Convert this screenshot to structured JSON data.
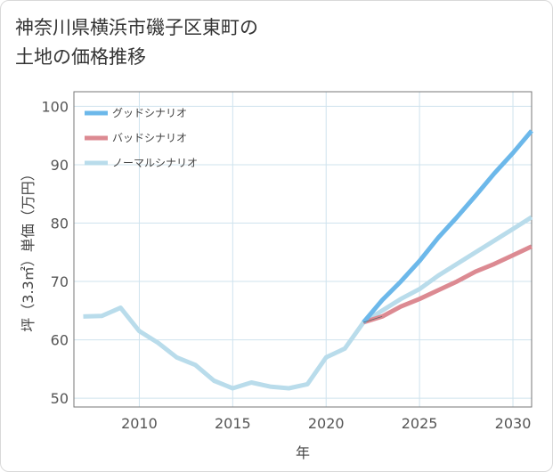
{
  "chart_data": {
    "type": "line",
    "title_lines": [
      "神奈川県横浜市磯子区東町の",
      "土地の価格推移"
    ],
    "xlabel": "年",
    "ylabel": "坪（3.3㎡）単価（万円）",
    "xlim": [
      2006.5,
      2031
    ],
    "ylim": [
      48.5,
      102.5
    ],
    "xticks": [
      2010,
      2015,
      2020,
      2025,
      2030
    ],
    "yticks": [
      50,
      60,
      70,
      80,
      90,
      100
    ],
    "grid": true,
    "legend_position": "top-left",
    "colors": {
      "good": "#6cb8ea",
      "bad": "#dc8a92",
      "normal": "#b9dceb",
      "grid": "#cfe3ee",
      "axis": "#777777"
    },
    "series": [
      {
        "name": "グッドシナリオ",
        "key": "good",
        "x": [
          2022,
          2023,
          2024,
          2025,
          2026,
          2027,
          2028,
          2029,
          2030,
          2031
        ],
        "y": [
          63,
          66.8,
          70,
          73.5,
          77.5,
          81,
          84.7,
          88.5,
          92,
          95.8
        ]
      },
      {
        "name": "バッドシナリオ",
        "key": "bad",
        "x": [
          2022,
          2023,
          2024,
          2025,
          2026,
          2027,
          2028,
          2029,
          2030,
          2031
        ],
        "y": [
          63,
          64,
          65.7,
          67,
          68.5,
          70,
          71.7,
          73,
          74.5,
          76
        ]
      },
      {
        "name": "ノーマルシナリオ",
        "key": "normal",
        "x": [
          2007,
          2008,
          2009,
          2010,
          2011,
          2012,
          2013,
          2014,
          2015,
          2016,
          2017,
          2018,
          2019,
          2020,
          2021,
          2022,
          2023,
          2024,
          2025,
          2026,
          2027,
          2028,
          2029,
          2030,
          2031
        ],
        "y": [
          64,
          64.1,
          65.5,
          61.5,
          59.5,
          57,
          55.7,
          53,
          51.7,
          52.7,
          52,
          51.7,
          52.4,
          57,
          58.5,
          63,
          65,
          67,
          68.7,
          71,
          73,
          75,
          77,
          79,
          81
        ]
      }
    ]
  }
}
